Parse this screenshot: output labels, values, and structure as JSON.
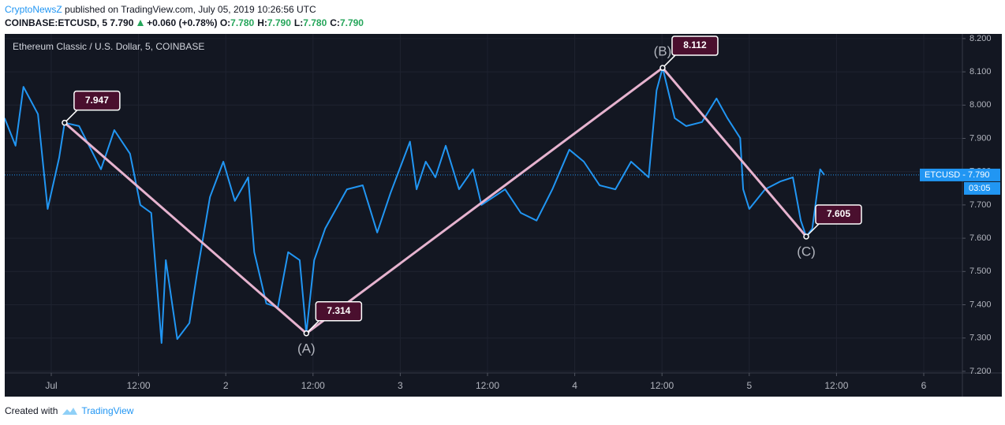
{
  "header": {
    "author": "CryptoNewsZ",
    "published": "published on TradingView.com, July 05, 2019 10:26:56 UTC",
    "symbol": "COINBASE:ETCUSD, 5",
    "last": "7.790",
    "change": "+0.060 (+0.78%)",
    "ohlc": [
      {
        "label": "O:",
        "value": "7.780"
      },
      {
        "label": "H:",
        "value": "7.790"
      },
      {
        "label": "L:",
        "value": "7.780"
      },
      {
        "label": "C:",
        "value": "7.790"
      }
    ]
  },
  "chart_data": {
    "type": "line",
    "grid": true,
    "xlim": [
      "2019-06-30T17:36Z",
      "2019-07-06T05:19Z"
    ],
    "xticks": [
      {
        "value": "2019-07-01T00:00Z",
        "label": "Jul"
      },
      {
        "value": "2019-07-01T12:00Z",
        "label": "12:00"
      },
      {
        "value": "2019-07-02T00:00Z",
        "label": "2"
      },
      {
        "value": "2019-07-02T12:00Z",
        "label": "12:00"
      },
      {
        "value": "2019-07-03T00:00Z",
        "label": "3"
      },
      {
        "value": "2019-07-03T12:00Z",
        "label": "12:00"
      },
      {
        "value": "2019-07-04T00:00Z",
        "label": "4"
      },
      {
        "value": "2019-07-04T12:00Z",
        "label": "12:00"
      },
      {
        "value": "2019-07-05T00:00Z",
        "label": "5"
      },
      {
        "value": "2019-07-05T12:00Z",
        "label": "12:00"
      },
      {
        "value": "2019-07-06T00:00Z",
        "label": "6"
      }
    ],
    "ylim": [
      7.195,
      8.214
    ],
    "yticks": [
      {
        "value": 7.2,
        "label": "7.200"
      },
      {
        "value": 7.3,
        "label": "7.300"
      },
      {
        "value": 7.4,
        "label": "7.400"
      },
      {
        "value": 7.5,
        "label": "7.500"
      },
      {
        "value": 7.6,
        "label": "7.600"
      },
      {
        "value": 7.7,
        "label": "7.700"
      },
      {
        "value": 7.8,
        "label": "7.800"
      },
      {
        "value": 7.9,
        "label": "7.900"
      },
      {
        "value": 8.0,
        "label": "8.000"
      },
      {
        "value": 8.1,
        "label": "8.100"
      },
      {
        "value": 8.2,
        "label": "8.200"
      }
    ],
    "series": [
      {
        "name": "Ethereum Classic / U.S. Dollar, 5, COINBASE",
        "color": "#2196f3",
        "x": [
          "2019-06-30T17:35Z",
          "2019-06-30T19:05Z",
          "2019-06-30T20:10Z",
          "2019-06-30T22:10Z",
          "2019-06-30T23:30Z",
          "2019-07-01T01:05Z",
          "2019-07-01T01:50Z",
          "2019-07-01T03:50Z",
          "2019-07-01T06:50Z",
          "2019-07-01T08:40Z",
          "2019-07-01T10:50Z",
          "2019-07-01T12:15Z",
          "2019-07-01T13:45Z",
          "2019-07-01T15:10Z",
          "2019-07-01T15:45Z",
          "2019-07-01T17:20Z",
          "2019-07-01T19:00Z",
          "2019-07-01T20:05Z",
          "2019-07-01T21:50Z",
          "2019-07-01T23:40Z",
          "2019-07-02T01:15Z",
          "2019-07-02T03:05Z",
          "2019-07-02T03:55Z",
          "2019-07-02T05:35Z",
          "2019-07-02T07:10Z",
          "2019-07-02T08:35Z",
          "2019-07-02T10:10Z",
          "2019-07-02T11:05Z",
          "2019-07-02T12:10Z",
          "2019-07-02T13:40Z",
          "2019-07-02T16:40Z",
          "2019-07-02T18:50Z",
          "2019-07-02T20:50Z",
          "2019-07-02T22:40Z",
          "2019-07-03T01:20Z",
          "2019-07-03T02:15Z",
          "2019-07-03T03:30Z",
          "2019-07-03T04:50Z",
          "2019-07-03T06:15Z",
          "2019-07-03T08:05Z",
          "2019-07-03T10:00Z",
          "2019-07-03T11:10Z",
          "2019-07-03T14:25Z",
          "2019-07-03T16:35Z",
          "2019-07-03T18:45Z",
          "2019-07-03T20:55Z",
          "2019-07-03T23:15Z",
          "2019-07-04T01:15Z",
          "2019-07-04T03:25Z",
          "2019-07-04T05:35Z",
          "2019-07-04T07:45Z",
          "2019-07-04T10:10Z",
          "2019-07-04T11:15Z",
          "2019-07-04T12:05Z",
          "2019-07-04T13:45Z",
          "2019-07-04T15:20Z",
          "2019-07-04T17:30Z",
          "2019-07-04T19:30Z",
          "2019-07-04T21:00Z",
          "2019-07-04T22:45Z",
          "2019-07-04T23:10Z",
          "2019-07-05T00:00Z",
          "2019-07-05T02:10Z",
          "2019-07-05T04:20Z",
          "2019-07-05T06:00Z",
          "2019-07-05T07:05Z",
          "2019-07-05T07:50Z",
          "2019-07-05T08:40Z",
          "2019-07-05T09:45Z",
          "2019-07-05T10:20Z"
        ],
        "values": [
          7.961,
          7.878,
          8.055,
          7.973,
          7.688,
          7.842,
          7.947,
          7.937,
          7.807,
          7.925,
          7.854,
          7.7,
          7.676,
          7.285,
          7.534,
          7.297,
          7.345,
          7.499,
          7.724,
          7.83,
          7.712,
          7.783,
          7.558,
          7.404,
          7.392,
          7.558,
          7.534,
          7.314,
          7.534,
          7.629,
          7.747,
          7.759,
          7.617,
          7.736,
          7.89,
          7.747,
          7.83,
          7.783,
          7.878,
          7.747,
          7.807,
          7.7,
          7.747,
          7.676,
          7.653,
          7.747,
          7.866,
          7.83,
          7.759,
          7.747,
          7.83,
          7.783,
          8.044,
          8.112,
          7.961,
          7.937,
          7.949,
          8.02,
          7.961,
          7.901,
          7.747,
          7.688,
          7.747,
          7.771,
          7.783,
          7.653,
          7.605,
          7.629,
          7.807,
          7.79
        ]
      }
    ],
    "last_value": 7.79,
    "last_label": "ETCUSD - 7.790",
    "countdown": "03:05",
    "wave": {
      "color": "#e6b3cf",
      "points": [
        {
          "x": "2019-07-01T01:50Z",
          "value": 7.947
        },
        {
          "x": "2019-07-02T11:05Z",
          "value": 7.314,
          "label": "(A)"
        },
        {
          "x": "2019-07-04T12:05Z",
          "value": 8.112,
          "label": "(B)"
        },
        {
          "x": "2019-07-05T07:50Z",
          "value": 7.605,
          "label": "(C)"
        }
      ]
    }
  },
  "footer": {
    "created": "Created with",
    "brand": "TradingView"
  }
}
